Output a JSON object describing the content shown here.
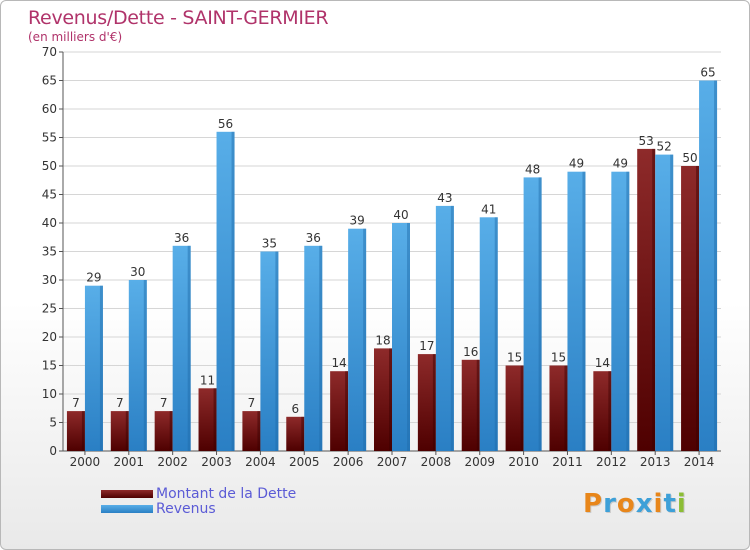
{
  "header": {
    "title": "Revenus/Dette - SAINT-GERMIER",
    "subtitle": "(en milliers d'€)"
  },
  "legend": [
    {
      "label": "Montant de la Dette",
      "color": "#6b0f14"
    },
    {
      "label": "Revenus",
      "color": "#3d94d8"
    }
  ],
  "logo": {
    "text": "Proxiti",
    "colors": [
      "#e8861a",
      "#3da0d8",
      "#e8861a",
      "#3da0d8",
      "#e8861a",
      "#3da0d8",
      "#8cbd35"
    ]
  },
  "chart_data": {
    "type": "bar",
    "title": "Revenus/Dette - SAINT-GERMIER",
    "ylabel": "(en milliers d'€)",
    "categories": [
      "2000",
      "2001",
      "2002",
      "2003",
      "2004",
      "2005",
      "2006",
      "2007",
      "2008",
      "2009",
      "2010",
      "2011",
      "2012",
      "2013",
      "2014"
    ],
    "series": [
      {
        "name": "Montant de la Dette",
        "color": "#6b0f14",
        "values": [
          7,
          7,
          7,
          11,
          7,
          6,
          14,
          18,
          17,
          16,
          15,
          15,
          14,
          53,
          50
        ]
      },
      {
        "name": "Revenus",
        "color": "#3d94d8",
        "values": [
          29,
          30,
          36,
          56,
          35,
          36,
          39,
          40,
          43,
          41,
          48,
          49,
          49,
          52,
          65
        ]
      }
    ],
    "ylim": [
      0,
      70
    ],
    "yticks": [
      0,
      5,
      10,
      15,
      20,
      25,
      30,
      35,
      40,
      45,
      50,
      55,
      60,
      65,
      70
    ],
    "grid": true,
    "legend_position": "bottom-left"
  }
}
